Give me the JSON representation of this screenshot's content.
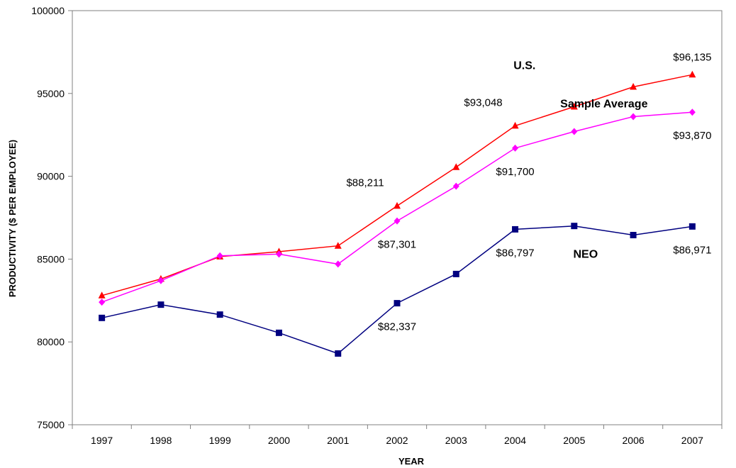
{
  "chart_data": {
    "type": "line",
    "xlabel": "YEAR",
    "ylabel": "PRODUCTIVITY ($ PER EMPLOYEE)",
    "ylim": [
      75000,
      100000
    ],
    "yticks": [
      75000,
      80000,
      85000,
      90000,
      95000,
      100000
    ],
    "grid": false,
    "legend": "none",
    "categories": [
      "1997",
      "1998",
      "1999",
      "2000",
      "2001",
      "2002",
      "2003",
      "2004",
      "2005",
      "2006",
      "2007"
    ],
    "series": [
      {
        "name": "U.S.",
        "color": "#ff0000",
        "marker": "triangle",
        "values": [
          82800,
          83800,
          85150,
          85450,
          85800,
          88211,
          90550,
          93048,
          94200,
          95400,
          96135
        ]
      },
      {
        "name": "Sample Average",
        "color": "#ff00ff",
        "marker": "diamond",
        "values": [
          82400,
          83700,
          85200,
          85300,
          84700,
          87301,
          89400,
          91700,
          92700,
          93600,
          93870
        ]
      },
      {
        "name": "NEO",
        "color": "#000080",
        "marker": "square",
        "values": [
          81450,
          82250,
          81650,
          80550,
          79300,
          82337,
          84100,
          86797,
          87000,
          86450,
          86971
        ]
      }
    ],
    "annotations": [
      {
        "text": "$96,135",
        "series": 0,
        "index": 10,
        "anchor": "above"
      },
      {
        "text": "$93,048",
        "series": 0,
        "index": 7,
        "anchor": "above-left"
      },
      {
        "text": "$88,211",
        "series": 0,
        "index": 5,
        "anchor": "above-left"
      },
      {
        "text": "$93,870",
        "series": 1,
        "index": 10,
        "anchor": "below"
      },
      {
        "text": "$91,700",
        "series": 1,
        "index": 7,
        "anchor": "below"
      },
      {
        "text": "$87,301",
        "series": 1,
        "index": 5,
        "anchor": "below"
      },
      {
        "text": "$86,971",
        "series": 2,
        "index": 10,
        "anchor": "below"
      },
      {
        "text": "$86,797",
        "series": 2,
        "index": 7,
        "anchor": "below"
      },
      {
        "text": "$82,337",
        "series": 2,
        "index": 5,
        "anchor": "below"
      }
    ],
    "series_labels": [
      {
        "text": "U.S.",
        "series": 0
      },
      {
        "text": "Sample Average",
        "series": 1
      },
      {
        "text": "NEO",
        "series": 2
      }
    ]
  }
}
